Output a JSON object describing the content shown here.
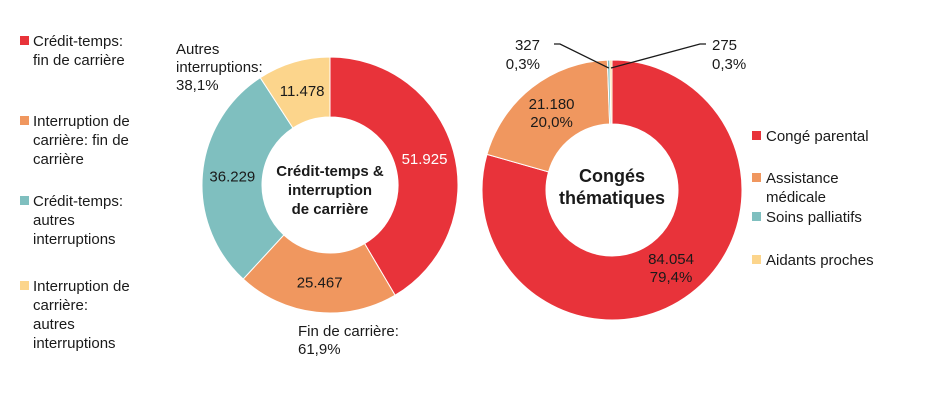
{
  "chart_data": [
    {
      "type": "pie",
      "center_label": [
        "Crédit-temps &",
        "interruption",
        "de carrière"
      ],
      "slices": [
        {
          "name": "Crédit-temps: fin de carrière",
          "value": 51925,
          "label": "51.925",
          "color": "#e8333a"
        },
        {
          "name": "Interruption de carrière: fin de carrière",
          "value": 25467,
          "label": "25.467",
          "color": "#f0975f"
        },
        {
          "name": "Crédit-temps: autres interruptions",
          "value": 36229,
          "label": "36.229",
          "color": "#7fbfbf"
        },
        {
          "name": "Interruption de carrière: autres interruptions",
          "value": 11478,
          "label": "11.478",
          "color": "#fcd58c"
        }
      ],
      "legend": [
        [
          "Crédit-temps:",
          "fin de carrière"
        ],
        [
          "Interruption de",
          "carrière: fin de",
          "carrière"
        ],
        [
          "Crédit-temps:",
          "autres",
          "interruptions"
        ],
        [
          "Interruption de",
          "carrière:",
          "autres",
          "interruptions"
        ]
      ],
      "annotations": [
        {
          "lines": [
            "Autres",
            "interruptions:",
            "38,1%"
          ]
        },
        {
          "lines": [
            "Fin de carrière:",
            "61,9%"
          ]
        }
      ]
    },
    {
      "type": "pie",
      "center_label": [
        "Congés",
        "thématiques"
      ],
      "slices": [
        {
          "name": "Congé parental",
          "value": 84054,
          "label": [
            "84.054",
            "79,4%"
          ],
          "color": "#e8333a"
        },
        {
          "name": "Assistance médicale",
          "value": 21180,
          "label": [
            "21.180",
            "20,0%"
          ],
          "color": "#f0975f"
        },
        {
          "name": "Soins palliatifs",
          "value": 327,
          "label": [
            "327",
            "0,3%"
          ],
          "color": "#7fbfbf"
        },
        {
          "name": "Aidants proches",
          "value": 275,
          "label": [
            "275",
            "0,3%"
          ],
          "color": "#fcd58c"
        }
      ],
      "legend": [
        [
          "Congé parental"
        ],
        [
          "Assistance",
          "médicale"
        ],
        [
          "Soins palliatifs"
        ],
        [
          "Aidants proches"
        ]
      ]
    }
  ]
}
